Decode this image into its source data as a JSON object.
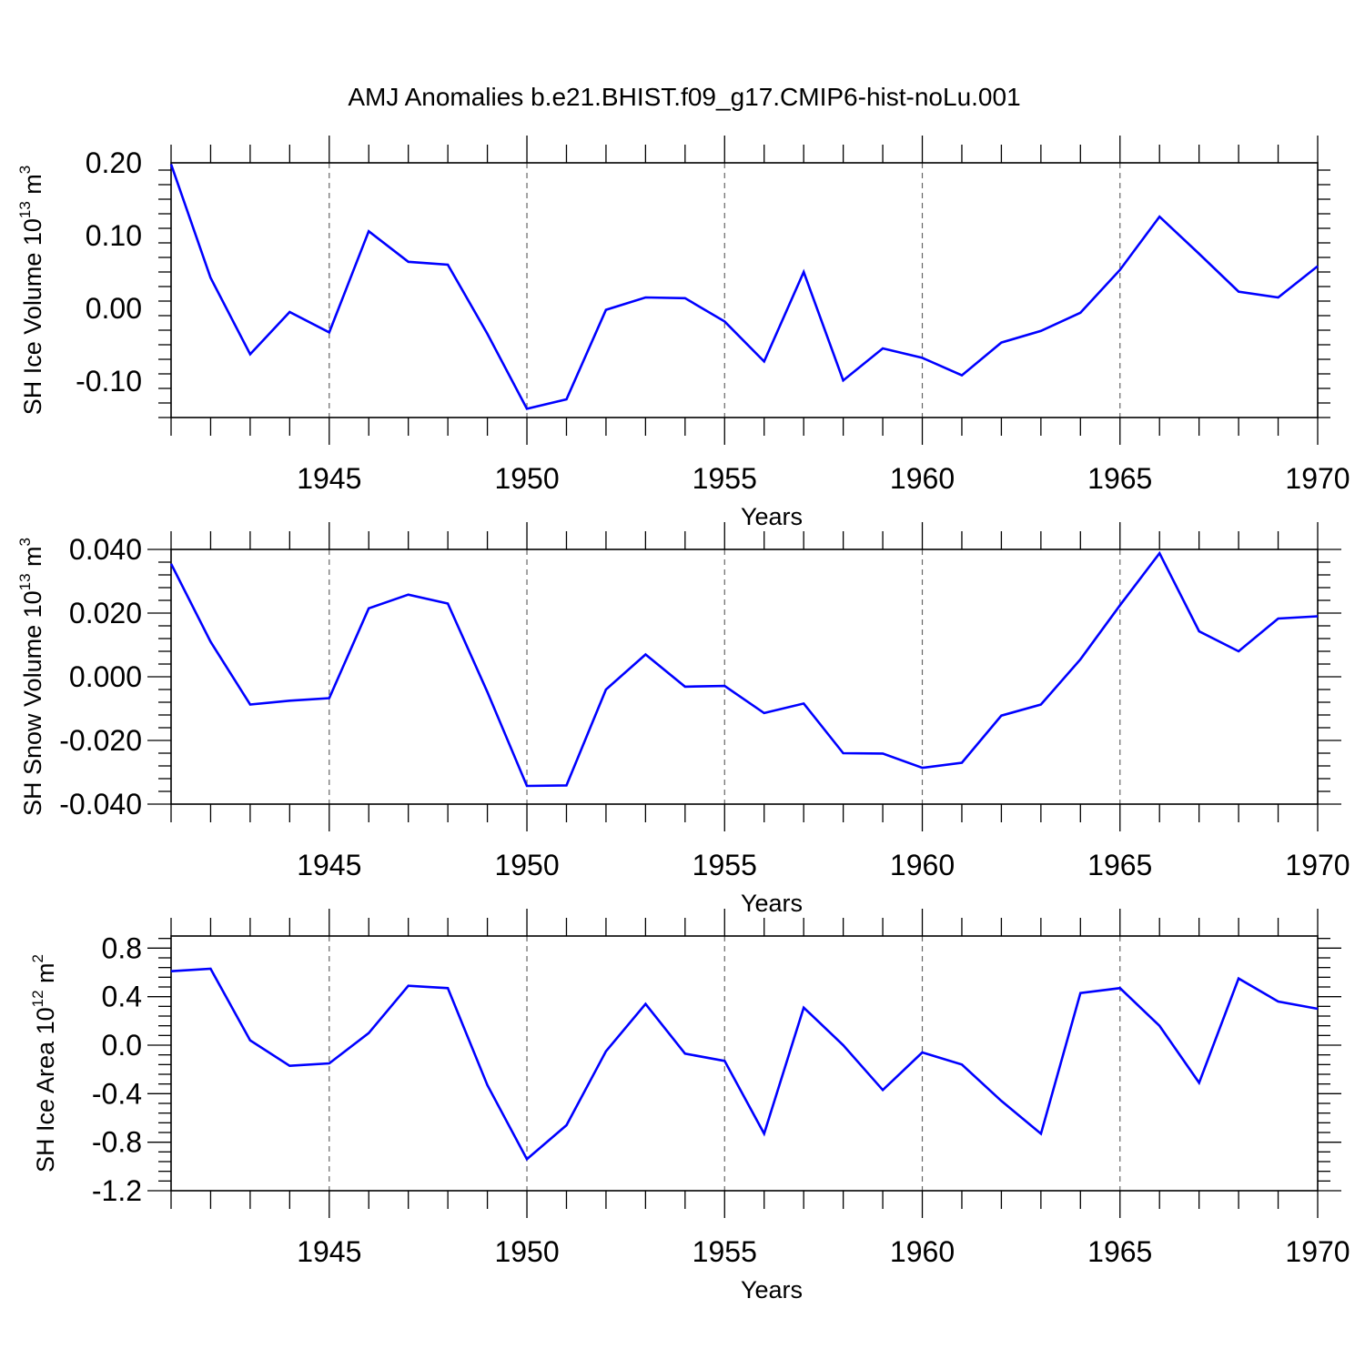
{
  "figure": {
    "title": "AMJ Anomalies b.e21.BHIST.f09_g17.CMIP6-hist-noLu.001"
  },
  "chart_data": [
    {
      "type": "line",
      "xlabel": "Years",
      "ylabel": "SH Ice Volume 10",
      "ylabel_exp": "13",
      "ylabel_unit": " m",
      "ylabel_unit_exp": "3",
      "xlim": [
        1941,
        1970
      ],
      "ylim": [
        -0.15,
        0.2
      ],
      "yticks": [
        -0.1,
        0.0,
        0.1,
        0.2
      ],
      "ytick_labels": [
        "-0.10",
        "0.00",
        "0.10",
        "0.20"
      ],
      "xticks": [
        1945,
        1950,
        1955,
        1960,
        1965,
        1970
      ],
      "xtick_labels": [
        "1945",
        "1950",
        "1955",
        "1960",
        "1965",
        "1970"
      ],
      "grid": "vertical dashed at major x ticks",
      "series": [
        {
          "color": "#0000ff",
          "x": [
            1941,
            1942,
            1943,
            1944,
            1945,
            1946,
            1947,
            1948,
            1949,
            1950,
            1951,
            1952,
            1953,
            1954,
            1955,
            1956,
            1957,
            1958,
            1959,
            1960,
            1961,
            1962,
            1963,
            1964,
            1965,
            1966,
            1967,
            1968,
            1969,
            1970
          ],
          "values": [
            0.198,
            0.042,
            -0.063,
            -0.005,
            -0.033,
            0.106,
            0.064,
            0.06,
            -0.035,
            -0.138,
            -0.125,
            -0.002,
            0.015,
            0.014,
            -0.018,
            -0.073,
            0.05,
            -0.099,
            -0.055,
            -0.068,
            -0.092,
            -0.047,
            -0.031,
            -0.006,
            0.053,
            0.126,
            0.075,
            0.023,
            0.015,
            0.058
          ]
        }
      ]
    },
    {
      "type": "line",
      "xlabel": "Years",
      "ylabel": "SH Snow Volume 10",
      "ylabel_exp": "13",
      "ylabel_unit": " m",
      "ylabel_unit_exp": "3",
      "xlim": [
        1941,
        1970
      ],
      "ylim": [
        -0.04,
        0.04
      ],
      "yticks": [
        -0.04,
        -0.02,
        0.0,
        0.02,
        0.04
      ],
      "ytick_labels": [
        "-0.040",
        "-0.020",
        "0.000",
        "0.020",
        "0.040"
      ],
      "xticks": [
        1945,
        1950,
        1955,
        1960,
        1965,
        1970
      ],
      "xtick_labels": [
        "1945",
        "1950",
        "1955",
        "1960",
        "1965",
        "1970"
      ],
      "grid": "vertical dashed at major x ticks",
      "series": [
        {
          "color": "#0000ff",
          "x": [
            1941,
            1942,
            1943,
            1944,
            1945,
            1946,
            1947,
            1948,
            1949,
            1950,
            1951,
            1952,
            1953,
            1954,
            1955,
            1956,
            1957,
            1958,
            1959,
            1960,
            1961,
            1962,
            1963,
            1964,
            1965,
            1966,
            1967,
            1968,
            1969,
            1970
          ],
          "values": [
            0.0355,
            0.011,
            -0.0087,
            -0.0075,
            -0.0067,
            0.0215,
            0.0258,
            0.023,
            -0.0048,
            -0.0343,
            -0.0341,
            -0.004,
            0.007,
            -0.0031,
            -0.0029,
            -0.0114,
            -0.0084,
            -0.024,
            -0.0241,
            -0.0286,
            -0.027,
            -0.0122,
            -0.0087,
            0.0055,
            0.0225,
            0.0388,
            0.0143,
            0.008,
            0.0183,
            0.019
          ]
        }
      ]
    },
    {
      "type": "line",
      "xlabel": "Years",
      "ylabel": "SH Ice Area 10",
      "ylabel_exp": "12",
      "ylabel_unit": " m",
      "ylabel_unit_exp": "2",
      "xlim": [
        1941,
        1970
      ],
      "ylim": [
        -1.2,
        0.9
      ],
      "yticks": [
        -1.2,
        -0.8,
        -0.4,
        0.0,
        0.4,
        0.8
      ],
      "ytick_labels": [
        "-1.2",
        "-0.8",
        "-0.4",
        "0.0",
        "0.4",
        "0.8"
      ],
      "xticks": [
        1945,
        1950,
        1955,
        1960,
        1965,
        1970
      ],
      "xtick_labels": [
        "1945",
        "1950",
        "1955",
        "1960",
        "1965",
        "1970"
      ],
      "grid": "vertical dashed at major x ticks",
      "series": [
        {
          "color": "#0000ff",
          "x": [
            1941,
            1942,
            1943,
            1944,
            1945,
            1946,
            1947,
            1948,
            1949,
            1950,
            1951,
            1952,
            1953,
            1954,
            1955,
            1956,
            1957,
            1958,
            1959,
            1960,
            1961,
            1962,
            1963,
            1964,
            1965,
            1966,
            1967,
            1968,
            1969,
            1970
          ],
          "values": [
            0.61,
            0.63,
            0.04,
            -0.17,
            -0.15,
            0.1,
            0.49,
            0.47,
            -0.33,
            -0.94,
            -0.66,
            -0.05,
            0.34,
            -0.07,
            -0.13,
            -0.73,
            0.31,
            0.0,
            -0.37,
            -0.06,
            -0.16,
            -0.46,
            -0.73,
            0.43,
            0.47,
            0.16,
            -0.31,
            0.55,
            0.36,
            0.3
          ]
        }
      ]
    }
  ]
}
